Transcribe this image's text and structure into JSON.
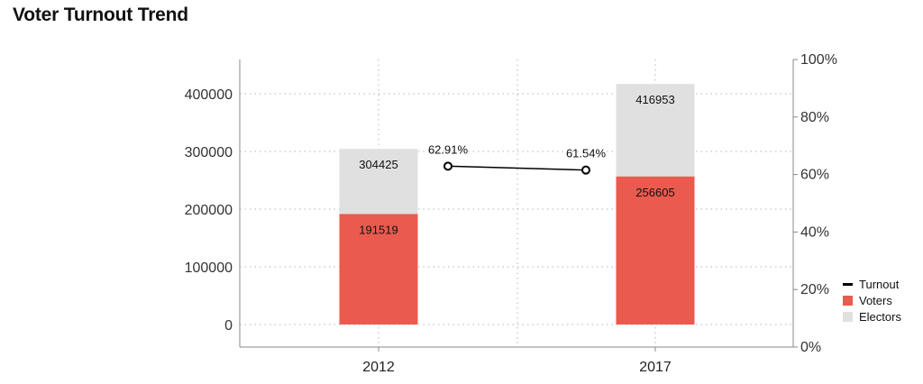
{
  "chart_data": {
    "type": "bar",
    "title": "Voter Turnout Trend",
    "categories": [
      "2012",
      "2017"
    ],
    "series": [
      {
        "name": "Voters",
        "values": [
          191519,
          256605
        ],
        "color": "#eb5a4e"
      },
      {
        "name": "Electors",
        "values": [
          304425,
          416953
        ],
        "color": "#e0e0e0"
      }
    ],
    "line_series": {
      "name": "Turnout",
      "values": [
        62.91,
        61.54
      ],
      "labels": [
        "62.91%",
        "61.54%"
      ],
      "color": "#000000"
    },
    "y_left": {
      "min": 0,
      "max": 480000,
      "ticks": [
        0,
        100000,
        200000,
        300000,
        400000
      ],
      "tick_labels": [
        "0",
        "100000",
        "200000",
        "300000",
        "400000"
      ]
    },
    "y_right": {
      "min": 0,
      "max": 100,
      "ticks": [
        0,
        20,
        40,
        60,
        80,
        100
      ],
      "tick_labels": [
        "0%",
        "20%",
        "40%",
        "60%",
        "80%",
        "100%"
      ]
    },
    "grid": true,
    "legend_position": "right",
    "legend": [
      {
        "name": "Turnout",
        "symbol": "line",
        "color": "#000000"
      },
      {
        "name": "Voters",
        "symbol": "box",
        "color": "#eb5a4e"
      },
      {
        "name": "Electors",
        "symbol": "box",
        "color": "#e0e0e0"
      }
    ]
  }
}
